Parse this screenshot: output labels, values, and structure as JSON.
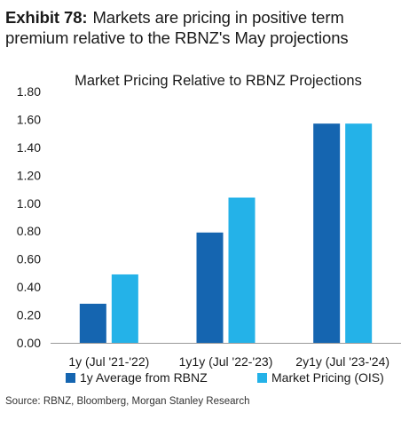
{
  "exhibit": {
    "label": "Exhibit 78:",
    "title": "Markets are pricing in positive term premium relative to the RBNZ's May projections"
  },
  "source": "Source: RBNZ, Bloomberg, Morgan Stanley Research",
  "colors": {
    "series1": "#1565b0",
    "series2": "#24b2e8",
    "axis": "#999999",
    "text": "#1a1a1a"
  },
  "chart_data": {
    "type": "bar",
    "title": "Market Pricing Relative to RBNZ Projections",
    "categories": [
      "1y (Jul '21-'22)",
      "1y1y (Jul '22-'23)",
      "2y1y (Jul '23-'24)"
    ],
    "series": [
      {
        "name": "1y Average from RBNZ",
        "values": [
          0.28,
          0.79,
          1.57
        ]
      },
      {
        "name": "Market Pricing (OIS)",
        "values": [
          0.49,
          1.04,
          1.57
        ]
      }
    ],
    "yticks": [
      "0.00",
      "0.20",
      "0.40",
      "0.60",
      "0.80",
      "1.00",
      "1.20",
      "1.40",
      "1.60",
      "1.80"
    ],
    "ylim": [
      0,
      1.8
    ],
    "grid": false,
    "legend_position": "bottom"
  }
}
